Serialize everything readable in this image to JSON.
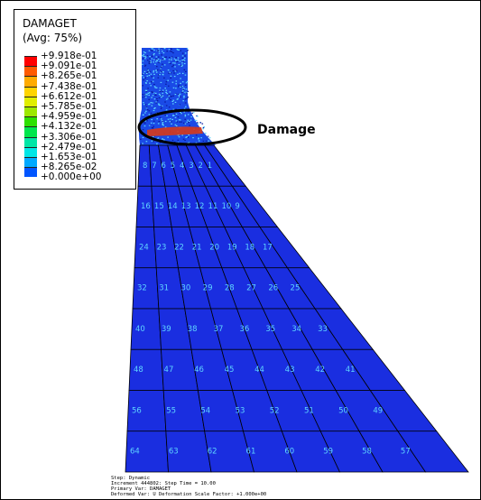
{
  "legend": {
    "title": "DAMAGET",
    "subtitle": "(Avg: 75%)",
    "entries": [
      {
        "label": "+9.918e-01",
        "color": "#ff0000"
      },
      {
        "label": "+9.091e-01",
        "color": "#ff5a00"
      },
      {
        "label": "+8.265e-01",
        "color": "#ffaa00"
      },
      {
        "label": "+7.438e-01",
        "color": "#ffd400"
      },
      {
        "label": "+6.612e-01",
        "color": "#e0ee00"
      },
      {
        "label": "+5.785e-01",
        "color": "#9de800"
      },
      {
        "label": "+4.959e-01",
        "color": "#2ee000"
      },
      {
        "label": "+4.132e-01",
        "color": "#00e64c"
      },
      {
        "label": "+3.306e-01",
        "color": "#00e6a6"
      },
      {
        "label": "+2.479e-01",
        "color": "#00e6e6"
      },
      {
        "label": "+1.653e-01",
        "color": "#00a9ff"
      },
      {
        "label": "+8.265e-02",
        "color": "#0055ff"
      },
      {
        "label": "+0.000e+00",
        "color": "#0000ff"
      }
    ]
  },
  "annotation": {
    "label": "Damage"
  },
  "mesh": {
    "fill_color": "#1a2ee0",
    "line_color": "#000000",
    "label_color": "#5fd6ff",
    "rows": [
      [
        "8",
        "7",
        "6",
        "5",
        "4",
        "3",
        "2",
        "1"
      ],
      [
        "16",
        "15",
        "14",
        "13",
        "12",
        "11",
        "10",
        "9"
      ],
      [
        "24",
        "23",
        "22",
        "21",
        "20",
        "19",
        "18",
        "17"
      ],
      [
        "32",
        "31",
        "30",
        "29",
        "28",
        "27",
        "26",
        "25"
      ],
      [
        "40",
        "39",
        "38",
        "37",
        "36",
        "35",
        "34",
        "33"
      ],
      [
        "48",
        "47",
        "46",
        "45",
        "44",
        "43",
        "42",
        "41"
      ],
      [
        "56",
        "55",
        "54",
        "53",
        "52",
        "51",
        "50",
        "49"
      ],
      [
        "64",
        "63",
        "62",
        "61",
        "60",
        "59",
        "58",
        "57"
      ]
    ]
  },
  "footer": {
    "lines": [
      "Step: Dynamic",
      "Increment   444802: Step Time =    10.00",
      "Primary Var: DAMAGET",
      "Deformed Var: U   Deformation Scale Factor: +1.000e+00"
    ]
  }
}
